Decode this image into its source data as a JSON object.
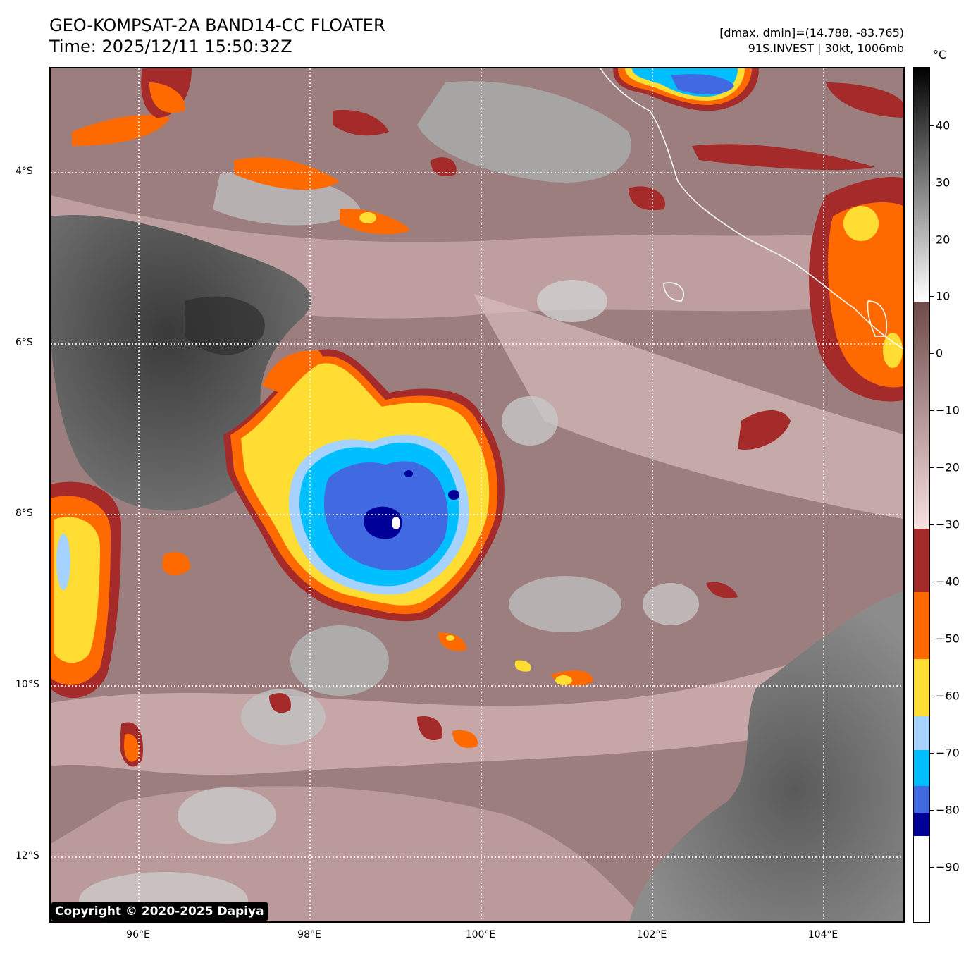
{
  "header": {
    "title_line1": "GEO-KOMPSAT-2A BAND14-CC FLOATER",
    "title_line2": "Time: 2025/12/11 15:50:32Z",
    "info_line1": "[dmax, dmin]=(14.788, -83.765)",
    "info_line2": "91S.INVEST | 30kt, 1006mb"
  },
  "axes": {
    "lat_labels": [
      "4°S",
      "6°S",
      "8°S",
      "10°S",
      "12°S"
    ],
    "lon_labels": [
      "96°E",
      "98°E",
      "100°E",
      "102°E",
      "104°E"
    ]
  },
  "colorbar": {
    "unit": "°C",
    "ticks": [
      "40",
      "30",
      "20",
      "10",
      "0",
      "−10",
      "−20",
      "−30",
      "−40",
      "−50",
      "−60",
      "−70",
      "−80",
      "−90"
    ]
  },
  "footer": {
    "copyright": "Copyright © 2020-2025 Dapiya"
  },
  "colors": {
    "dark_red": "#a52a2a",
    "orange": "#ff6a00",
    "yellow": "#ffdd33",
    "light_blue": "#a6d2ff",
    "cyan": "#00bfff",
    "blue": "#4169e1",
    "navy": "#000099",
    "background_warm": "#9a7a7a"
  }
}
